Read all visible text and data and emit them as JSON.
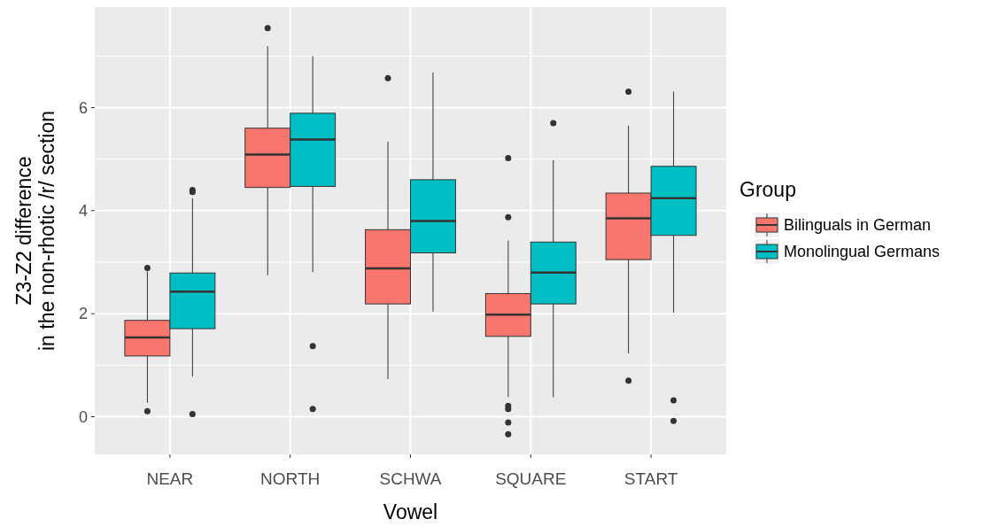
{
  "chart_data": {
    "type": "box",
    "xlabel": "Vowel",
    "ylabel": "Z3-Z2 difference\nin the non-rhotic /r/ section",
    "legend_title": "Group",
    "legend": "right",
    "grid": true,
    "categories": [
      "NEAR",
      "NORTH",
      "SCHWA",
      "SQUARE",
      "START"
    ],
    "ylim": [
      -0.73,
      7.95
    ],
    "yticks": [
      0,
      2,
      4,
      6
    ],
    "series": [
      {
        "name": "Bilinguals in German",
        "color": "#f8766d",
        "boxes": [
          {
            "low": 0.27,
            "q1": 1.18,
            "median": 1.54,
            "q3": 1.87,
            "high": 2.82,
            "outliers": [
              2.89,
              0.11
            ]
          },
          {
            "low": 2.75,
            "q1": 4.45,
            "median": 5.09,
            "q3": 5.6,
            "high": 7.19,
            "outliers": [
              7.54
            ]
          },
          {
            "low": 0.73,
            "q1": 2.19,
            "median": 2.88,
            "q3": 3.63,
            "high": 5.34,
            "outliers": [
              6.57
            ]
          },
          {
            "low": 0.38,
            "q1": 1.56,
            "median": 1.98,
            "q3": 2.39,
            "high": 3.42,
            "outliers": [
              5.02,
              3.87,
              0.21,
              0.15,
              -0.11,
              -0.34
            ]
          },
          {
            "low": 1.23,
            "q1": 3.05,
            "median": 3.85,
            "q3": 4.34,
            "high": 5.65,
            "outliers": [
              6.31,
              0.7
            ]
          }
        ]
      },
      {
        "name": "Monolingual Germans",
        "color": "#00bfc4",
        "boxes": [
          {
            "low": 0.78,
            "q1": 1.71,
            "median": 2.43,
            "q3": 2.79,
            "high": 4.24,
            "outliers": [
              4.4,
              4.36,
              0.05
            ]
          },
          {
            "low": 2.81,
            "q1": 4.47,
            "median": 5.38,
            "q3": 5.89,
            "high": 7.0,
            "outliers": [
              1.37,
              0.15
            ]
          },
          {
            "low": 2.04,
            "q1": 3.18,
            "median": 3.8,
            "q3": 4.6,
            "high": 6.68
          },
          {
            "low": 0.38,
            "q1": 2.19,
            "median": 2.8,
            "q3": 3.39,
            "high": 4.98,
            "outliers": [
              5.7
            ]
          },
          {
            "low": 2.02,
            "q1": 3.52,
            "median": 4.24,
            "q3": 4.86,
            "high": 6.31,
            "outliers": [
              0.32,
              -0.08
            ]
          }
        ]
      }
    ]
  }
}
